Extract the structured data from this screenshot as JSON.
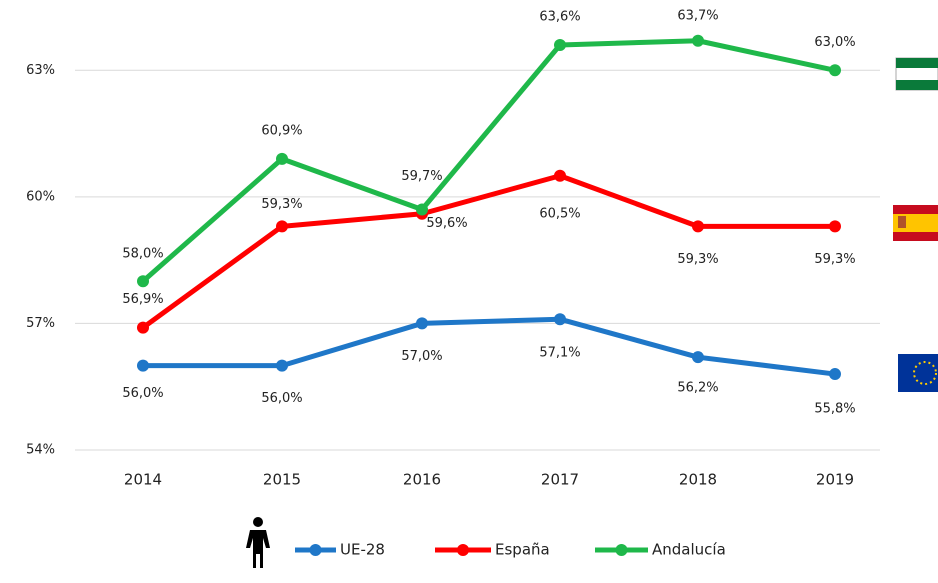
{
  "chart_data": {
    "type": "line",
    "categories": [
      "2014",
      "2015",
      "2016",
      "2017",
      "2018",
      "2019"
    ],
    "series": [
      {
        "name": "UE-28",
        "color": "#1f77c8",
        "values": [
          56.0,
          56.0,
          57.0,
          57.1,
          56.2,
          55.8
        ],
        "value_labels": [
          "56,0%",
          "56,0%",
          "57,0%",
          "57,1%",
          "56,2%",
          "55,8%"
        ]
      },
      {
        "name": "España",
        "color": "#ff0000",
        "values": [
          56.9,
          59.3,
          59.6,
          60.5,
          59.3,
          59.3
        ],
        "value_labels": [
          "56,9%",
          "59,3%",
          "59,6%",
          "60,5%",
          "59,3%",
          "59,3%"
        ]
      },
      {
        "name": "Andalucía",
        "color": "#1fb84a",
        "values": [
          58.0,
          60.9,
          59.7,
          63.6,
          63.7,
          63.0
        ],
        "value_labels": [
          "58,0%",
          "60,9%",
          "59,7%",
          "63,6%",
          "63,7%",
          "63,0%"
        ]
      }
    ],
    "ylim": [
      54,
      64.5
    ],
    "yticks": [
      {
        "value": 54,
        "label": "54%"
      },
      {
        "value": 57,
        "label": "57%"
      },
      {
        "value": 60,
        "label": "60%"
      },
      {
        "value": 63,
        "label": "63%"
      }
    ],
    "grid": true,
    "legend": "bottom"
  }
}
